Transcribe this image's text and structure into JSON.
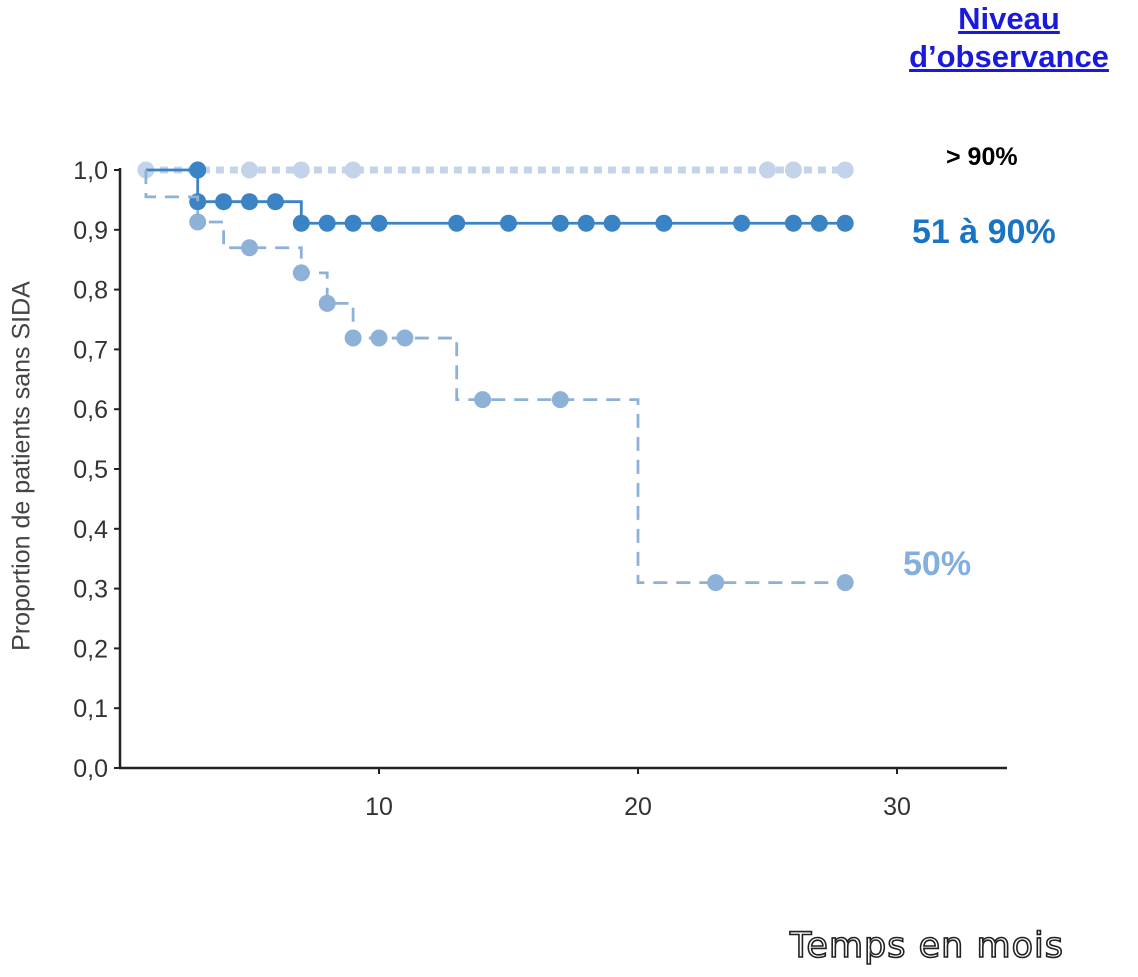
{
  "legend": {
    "title_line1": "Niveau",
    "title_line2": "d’observance"
  },
  "colors": {
    "gt90": "#c3d3ea",
    "s51_90": "#3a83c5",
    "le50": "#8eb1d8",
    "label_gt90": "#000000",
    "label_51_90": "#1a74c4",
    "label_le50": "#82aee0",
    "axis": "#222222"
  },
  "chart_data": {
    "type": "line",
    "step": true,
    "xlabel": "Temps en mois",
    "ylabel": "Proportion de patients sans SIDA",
    "xlim": [
      0,
      34
    ],
    "ylim": [
      0,
      1
    ],
    "x_ticks": [
      10,
      20,
      30
    ],
    "x_tick_labels": [
      "10",
      "20",
      "30"
    ],
    "y_ticks": [
      0,
      0.1,
      0.2,
      0.3,
      0.4,
      0.5,
      0.6,
      0.7,
      0.8,
      0.9,
      1.0
    ],
    "y_tick_labels": [
      "0,0",
      "0,1",
      "0,2",
      "0,3",
      "0,4",
      "0,5",
      "0,6",
      "0,7",
      "0,8",
      "0,9",
      "1,0"
    ],
    "grid": false,
    "series": [
      {
        "name": "> 90%",
        "style": "dotted",
        "steps": [
          [
            1,
            1.0
          ],
          [
            28,
            1.0
          ]
        ],
        "censored": [
          [
            1,
            1.0
          ],
          [
            3,
            1.0
          ],
          [
            5,
            1.0
          ],
          [
            7,
            1.0
          ],
          [
            9,
            1.0
          ],
          [
            25,
            1.0
          ],
          [
            26,
            1.0
          ],
          [
            28,
            1.0
          ]
        ]
      },
      {
        "name": "51 à 90%",
        "style": "solid",
        "steps": [
          [
            1,
            1.0
          ],
          [
            3,
            0.947
          ],
          [
            7,
            0.911
          ],
          [
            28,
            0.911
          ]
        ],
        "censored": [
          [
            3,
            1.0
          ],
          [
            3,
            0.947
          ],
          [
            4,
            0.947
          ],
          [
            5,
            0.947
          ],
          [
            6,
            0.947
          ],
          [
            7,
            0.911
          ],
          [
            8,
            0.911
          ],
          [
            9,
            0.911
          ],
          [
            10,
            0.911
          ],
          [
            13,
            0.911
          ],
          [
            15,
            0.911
          ],
          [
            17,
            0.911
          ],
          [
            18,
            0.911
          ],
          [
            19,
            0.911
          ],
          [
            21,
            0.911
          ],
          [
            24,
            0.911
          ],
          [
            26,
            0.911
          ],
          [
            27,
            0.911
          ],
          [
            28,
            0.911
          ]
        ]
      },
      {
        "name": "50%",
        "style": "dashed",
        "steps": [
          [
            1,
            1.0
          ],
          [
            1,
            0.955
          ],
          [
            3,
            0.913
          ],
          [
            4,
            0.87
          ],
          [
            7,
            0.828
          ],
          [
            8,
            0.777
          ],
          [
            9,
            0.719
          ],
          [
            13,
            0.616
          ],
          [
            20,
            0.31
          ],
          [
            28,
            0.31
          ]
        ],
        "censored": [
          [
            3,
            0.913
          ],
          [
            5,
            0.87
          ],
          [
            7,
            0.828
          ],
          [
            8,
            0.777
          ],
          [
            9,
            0.719
          ],
          [
            10,
            0.719
          ],
          [
            11,
            0.719
          ],
          [
            14,
            0.616
          ],
          [
            17,
            0.616
          ],
          [
            23,
            0.31
          ],
          [
            28,
            0.31
          ]
        ]
      }
    ]
  }
}
